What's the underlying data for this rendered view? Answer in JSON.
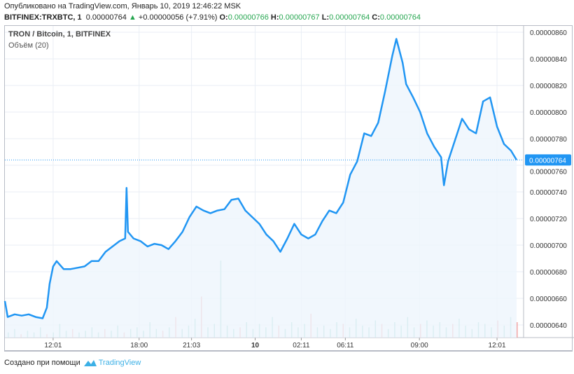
{
  "header": {
    "published": "Опубликовано на TradingView.com, Январь 10, 2019 12:46:22 MSK",
    "symbol": "BITFINEX:TRXBTC, 1",
    "last": "0.00000764",
    "change": "+0.00000056 (+7.91%)",
    "o_label": "O:",
    "o": "0.00000766",
    "h_label": "H:",
    "h": "0.00000767",
    "l_label": "L:",
    "l": "0.00000764",
    "c_label": "C:",
    "c": "0.00000764"
  },
  "legend": {
    "title": "TRON / Bitcoin, 1, BITFINEX",
    "volume": "Объём (20)"
  },
  "footer": {
    "text": "Создано при помощи",
    "brand": "TradingView"
  },
  "colors": {
    "line": "#2196f3",
    "fill": "#eef5fd",
    "up_volume": "#8fd1c6",
    "down_volume": "#f2a3a3",
    "price_tag": "#2196f3",
    "grid": "#e9eef5",
    "up_arrow": "#26a650"
  },
  "chart_data": {
    "type": "area",
    "x_unit": "bar index",
    "ylim": [
      632,
      866
    ],
    "y_scale_note": "×1e-8 BTC",
    "y_ticks": [
      "0.00000860",
      "0.00000840",
      "0.00000820",
      "0.00000800",
      "0.00000780",
      "0.00000760",
      "0.00000740",
      "0.00000720",
      "0.00000700",
      "0.00000680",
      "0.00000660",
      "0.00000640"
    ],
    "y_tick_values": [
      860,
      840,
      820,
      800,
      780,
      760,
      740,
      720,
      700,
      680,
      660,
      640
    ],
    "x_ticks": [
      {
        "label": "12:01",
        "bar": 69
      },
      {
        "label": "18:00",
        "bar": 192
      },
      {
        "label": "21:03",
        "bar": 267
      },
      {
        "label": "10",
        "bar": 358,
        "bold": true
      },
      {
        "label": "02:11",
        "bar": 424
      },
      {
        "label": "06:11",
        "bar": 487
      },
      {
        "label": "09:00",
        "bar": 593
      },
      {
        "label": "12:01",
        "bar": 704
      }
    ],
    "xlim": [
      0,
      742
    ],
    "current_price": "0.00000764",
    "current_value": 764,
    "series": {
      "x": [
        0,
        4,
        14,
        24,
        34,
        44,
        54,
        60,
        64,
        69,
        74,
        84,
        94,
        104,
        114,
        124,
        134,
        144,
        154,
        164,
        172,
        174,
        176,
        184,
        194,
        204,
        214,
        224,
        234,
        244,
        254,
        264,
        274,
        284,
        294,
        304,
        314,
        324,
        334,
        344,
        354,
        364,
        374,
        384,
        394,
        404,
        414,
        424,
        434,
        444,
        454,
        464,
        474,
        484,
        494,
        504,
        514,
        524,
        534,
        544,
        554,
        560,
        569,
        574,
        584,
        594,
        604,
        614,
        624,
        628,
        634,
        644,
        654,
        664,
        674,
        684,
        694,
        704,
        714,
        724,
        732
      ],
      "y": [
        658,
        646,
        648,
        647,
        648,
        646,
        645,
        653,
        671,
        684,
        688,
        682,
        682,
        683,
        684,
        688,
        688,
        695,
        699,
        703,
        705,
        743,
        710,
        705,
        703,
        699,
        701,
        700,
        697,
        703,
        710,
        721,
        729,
        726,
        724,
        726,
        727,
        734,
        735,
        726,
        721,
        716,
        708,
        703,
        695,
        705,
        716,
        708,
        705,
        708,
        718,
        726,
        724,
        732,
        753,
        763,
        784,
        782,
        792,
        816,
        842,
        855,
        837,
        821,
        811,
        800,
        784,
        774,
        766,
        745,
        763,
        779,
        795,
        787,
        784,
        808,
        811,
        789,
        776,
        771,
        764
      ]
    },
    "volume": [
      3,
      5,
      2,
      4,
      3,
      6,
      2,
      3,
      8,
      4,
      5,
      3,
      4,
      6,
      3,
      5,
      4,
      7,
      3,
      5,
      6,
      4,
      9,
      5,
      4,
      6,
      12,
      5,
      7,
      11,
      24,
      6,
      8,
      45,
      7,
      5,
      6,
      9,
      5,
      8,
      6,
      12,
      7,
      5,
      9,
      6,
      8,
      14,
      6,
      7,
      5,
      9,
      8,
      6,
      11,
      7,
      6,
      10,
      8,
      5,
      9,
      7,
      12,
      6,
      8,
      10,
      7,
      9,
      6,
      8,
      11,
      7,
      5,
      9,
      8,
      6,
      10,
      7,
      12,
      9
    ],
    "volume_down": [
      false,
      false,
      true,
      false,
      false,
      false,
      true,
      false,
      false,
      false,
      true,
      false,
      false,
      false,
      false,
      true,
      false,
      false,
      true,
      false,
      false,
      false,
      false,
      false,
      true,
      false,
      true,
      false,
      false,
      false,
      true,
      false,
      false,
      false,
      false,
      false,
      true,
      false,
      false,
      false,
      false,
      false,
      true,
      false,
      false,
      false,
      false,
      true,
      false,
      false,
      false,
      false,
      true,
      false,
      false,
      false,
      false,
      false,
      true,
      false,
      false,
      false,
      false,
      false,
      true,
      false,
      false,
      false,
      false,
      true,
      false,
      false,
      false,
      false,
      false,
      false,
      true,
      false,
      false,
      true
    ]
  }
}
